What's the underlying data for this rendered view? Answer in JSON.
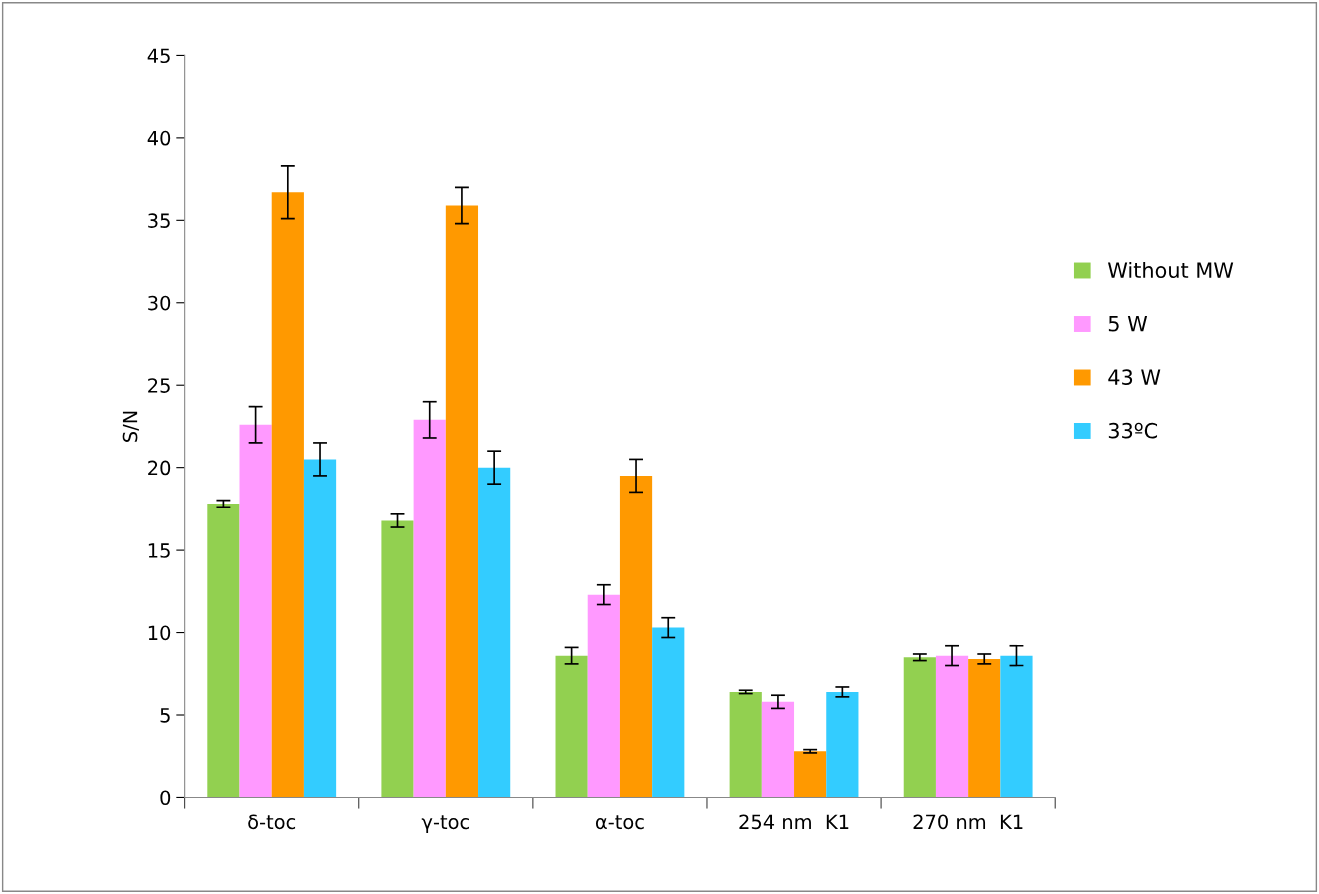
{
  "chart_data": {
    "type": "bar",
    "ylabel": "S/N",
    "categories": [
      "δ-toc",
      "γ-toc",
      "α-toc",
      "254 nm  K1",
      "270 nm  K1"
    ],
    "series": [
      {
        "name": "Without MW",
        "color": "#92d050",
        "values": [
          17.8,
          16.8,
          8.6,
          6.4,
          8.5
        ],
        "errors": [
          0.2,
          0.4,
          0.5,
          0.1,
          0.2
        ]
      },
      {
        "name": "5 W",
        "color": "#ff99ff",
        "values": [
          22.6,
          22.9,
          12.3,
          5.8,
          8.6
        ],
        "errors": [
          1.1,
          1.1,
          0.6,
          0.4,
          0.6
        ]
      },
      {
        "name": "43 W",
        "color": "#ff9900",
        "values": [
          36.7,
          35.9,
          19.5,
          2.8,
          8.4
        ],
        "errors": [
          1.6,
          1.1,
          1.0,
          0.1,
          0.3
        ]
      },
      {
        "name": "33ºC",
        "color": "#33ccff",
        "values": [
          20.5,
          20.0,
          10.3,
          6.4,
          8.6
        ],
        "errors": [
          1.0,
          1.0,
          0.6,
          0.3,
          0.6
        ]
      }
    ],
    "ylim": [
      0,
      45
    ],
    "yticks": [
      0,
      5,
      10,
      15,
      20,
      25,
      30,
      35,
      40,
      45
    ],
    "grid": false,
    "legend": "right"
  }
}
